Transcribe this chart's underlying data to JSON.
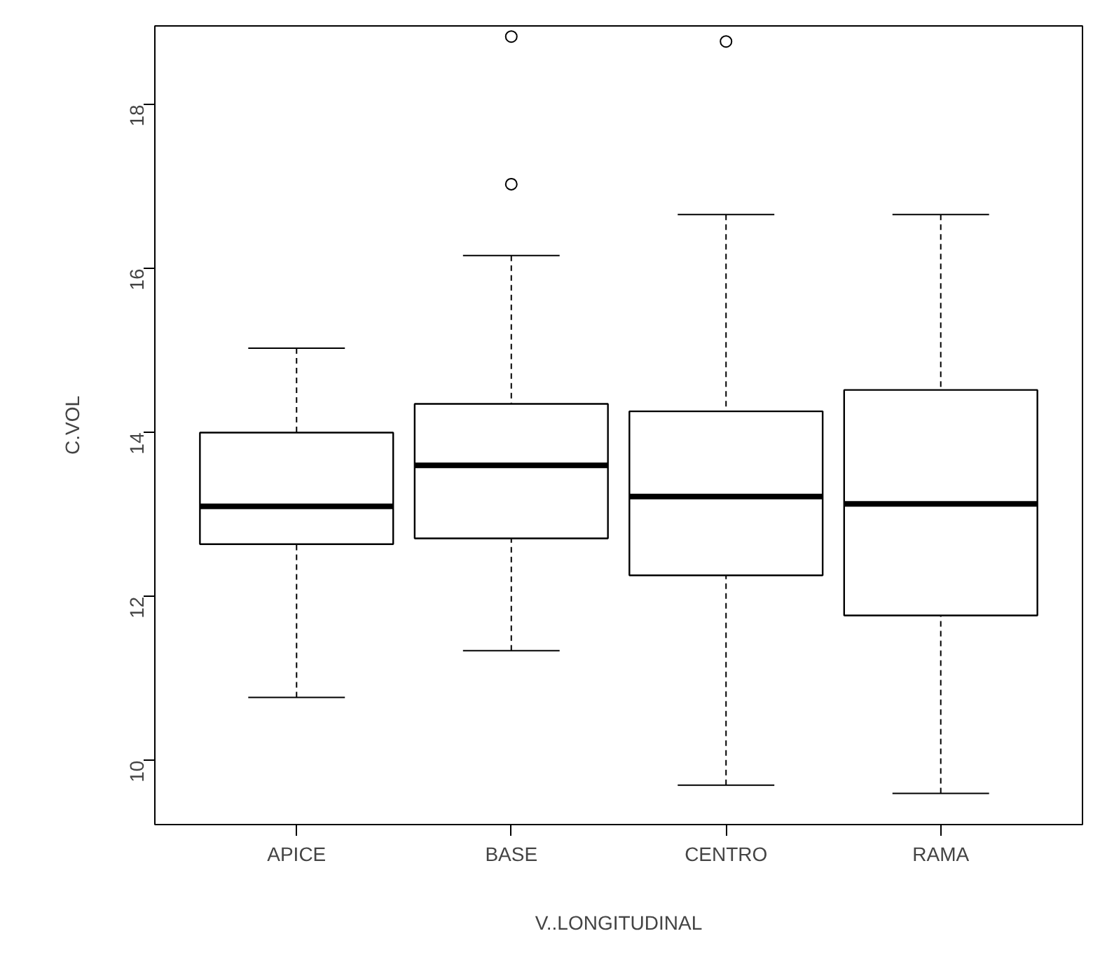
{
  "chart_data": {
    "type": "box",
    "xlabel": "V..LONGITUDINAL",
    "ylabel": "C.VOL",
    "categories": [
      "APICE",
      "BASE",
      "CENTRO",
      "RAMA"
    ],
    "boxes": [
      {
        "low": 10.77,
        "q1": 12.64,
        "median": 13.1,
        "q3": 14.0,
        "high": 15.03
      },
      {
        "low": 11.34,
        "q1": 12.71,
        "median": 13.6,
        "q3": 14.35,
        "high": 16.16,
        "outliers": [
          18.83,
          17.03
        ]
      },
      {
        "low": 9.7,
        "q1": 12.26,
        "median": 13.22,
        "q3": 14.26,
        "high": 16.66,
        "outliers": [
          18.77
        ]
      },
      {
        "low": 9.6,
        "q1": 11.77,
        "median": 13.13,
        "q3": 14.52,
        "high": 16.66
      }
    ],
    "color": "#ffffff",
    "ylim": [
      9.22,
      18.96
    ],
    "yticks": [
      10,
      12,
      14,
      16,
      18
    ],
    "grid": false
  }
}
